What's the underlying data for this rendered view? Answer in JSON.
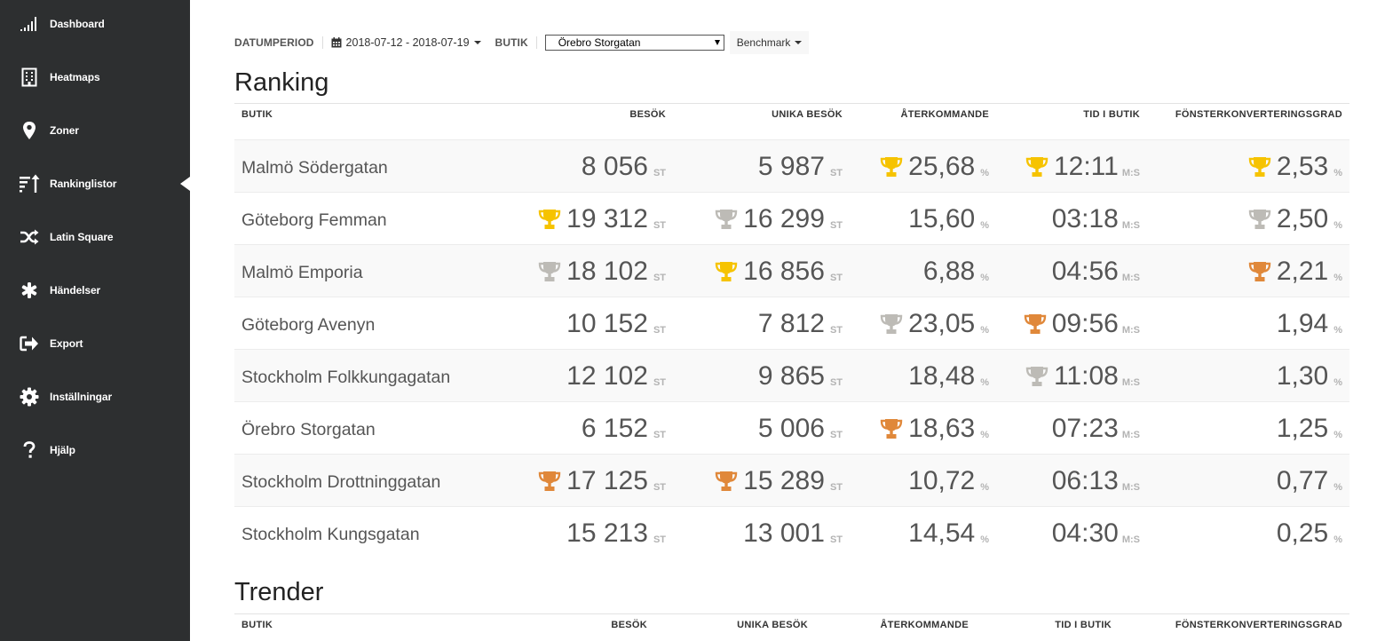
{
  "sidebar": {
    "items": [
      {
        "label": "Dashboard",
        "icon": "signal-bars-icon"
      },
      {
        "label": "Heatmaps",
        "icon": "building-icon"
      },
      {
        "label": "Zoner",
        "icon": "map-marker-icon"
      },
      {
        "label": "Rankinglistor",
        "icon": "sort-ranking-icon",
        "active": true
      },
      {
        "label": "Latin Square",
        "icon": "shuffle-icon"
      },
      {
        "label": "Händelser",
        "icon": "asterisk-icon"
      },
      {
        "label": "Export",
        "icon": "sign-out-icon"
      },
      {
        "label": "Inställningar",
        "icon": "gear-icon"
      },
      {
        "label": "Hjälp",
        "icon": "question-icon"
      }
    ]
  },
  "filters": {
    "date_label": "DATUMPERIOD",
    "date_range": "2018-07-12 - 2018-07-19",
    "store_label": "BUTIK",
    "store_selected": "Örebro Storgatan",
    "benchmark_label": "Benchmark"
  },
  "colors": {
    "gold": "#f6c300",
    "silver": "#bdbbb6",
    "bronze": "#e0883a",
    "sidebar_bg": "#2d2f30"
  },
  "ranking": {
    "title": "Ranking",
    "columns": {
      "store": "BUTIK",
      "visits": "BESÖK",
      "unique": "UNIKA BESÖK",
      "returning": "ÅTERKOMMANDE",
      "time": "TID I BUTIK",
      "conversion": "FÖNSTERKONVERTERINGSGRAD"
    },
    "units": {
      "count": "ST",
      "percent": "%",
      "time": "M:S"
    },
    "rows": [
      {
        "store": "Malmö Södergatan",
        "visits": "8 056",
        "visits_trophy": "",
        "unique": "5 987",
        "unique_trophy": "",
        "returning": "25,68",
        "returning_trophy": "gold",
        "time": "12:11",
        "time_trophy": "gold",
        "conversion": "2,53",
        "conversion_trophy": "gold"
      },
      {
        "store": "Göteborg Femman",
        "visits": "19 312",
        "visits_trophy": "gold",
        "unique": "16 299",
        "unique_trophy": "silver",
        "returning": "15,60",
        "returning_trophy": "",
        "time": "03:18",
        "time_trophy": "",
        "conversion": "2,50",
        "conversion_trophy": "silver"
      },
      {
        "store": "Malmö Emporia",
        "visits": "18 102",
        "visits_trophy": "silver",
        "unique": "16 856",
        "unique_trophy": "gold",
        "returning": "6,88",
        "returning_trophy": "",
        "time": "04:56",
        "time_trophy": "",
        "conversion": "2,21",
        "conversion_trophy": "bronze"
      },
      {
        "store": "Göteborg Avenyn",
        "visits": "10 152",
        "visits_trophy": "",
        "unique": "7 812",
        "unique_trophy": "",
        "returning": "23,05",
        "returning_trophy": "silver",
        "time": "09:56",
        "time_trophy": "bronze",
        "conversion": "1,94",
        "conversion_trophy": ""
      },
      {
        "store": "Stockholm Folkkungagatan",
        "visits": "12 102",
        "visits_trophy": "",
        "unique": "9 865",
        "unique_trophy": "",
        "returning": "18,48",
        "returning_trophy": "",
        "time": "11:08",
        "time_trophy": "silver",
        "conversion": "1,30",
        "conversion_trophy": ""
      },
      {
        "store": "Örebro Storgatan",
        "visits": "6 152",
        "visits_trophy": "",
        "unique": "5 006",
        "unique_trophy": "",
        "returning": "18,63",
        "returning_trophy": "bronze",
        "time": "07:23",
        "time_trophy": "",
        "conversion": "1,25",
        "conversion_trophy": ""
      },
      {
        "store": "Stockholm Drottninggatan",
        "visits": "17 125",
        "visits_trophy": "bronze",
        "unique": "15 289",
        "unique_trophy": "bronze",
        "returning": "10,72",
        "returning_trophy": "",
        "time": "06:13",
        "time_trophy": "",
        "conversion": "0,77",
        "conversion_trophy": ""
      },
      {
        "store": "Stockholm Kungsgatan",
        "visits": "15 213",
        "visits_trophy": "",
        "unique": "13 001",
        "unique_trophy": "",
        "returning": "14,54",
        "returning_trophy": "",
        "time": "04:30",
        "time_trophy": "",
        "conversion": "0,25",
        "conversion_trophy": ""
      }
    ]
  },
  "trends": {
    "title": "Trender",
    "columns": {
      "store": "BUTIK",
      "visits": "BESÖK",
      "unique": "UNIKA BESÖK",
      "returning": "ÅTERKOMMANDE",
      "time": "TID I BUTIK",
      "conversion": "FÖNSTERKONVERTERINGSGRAD"
    }
  }
}
